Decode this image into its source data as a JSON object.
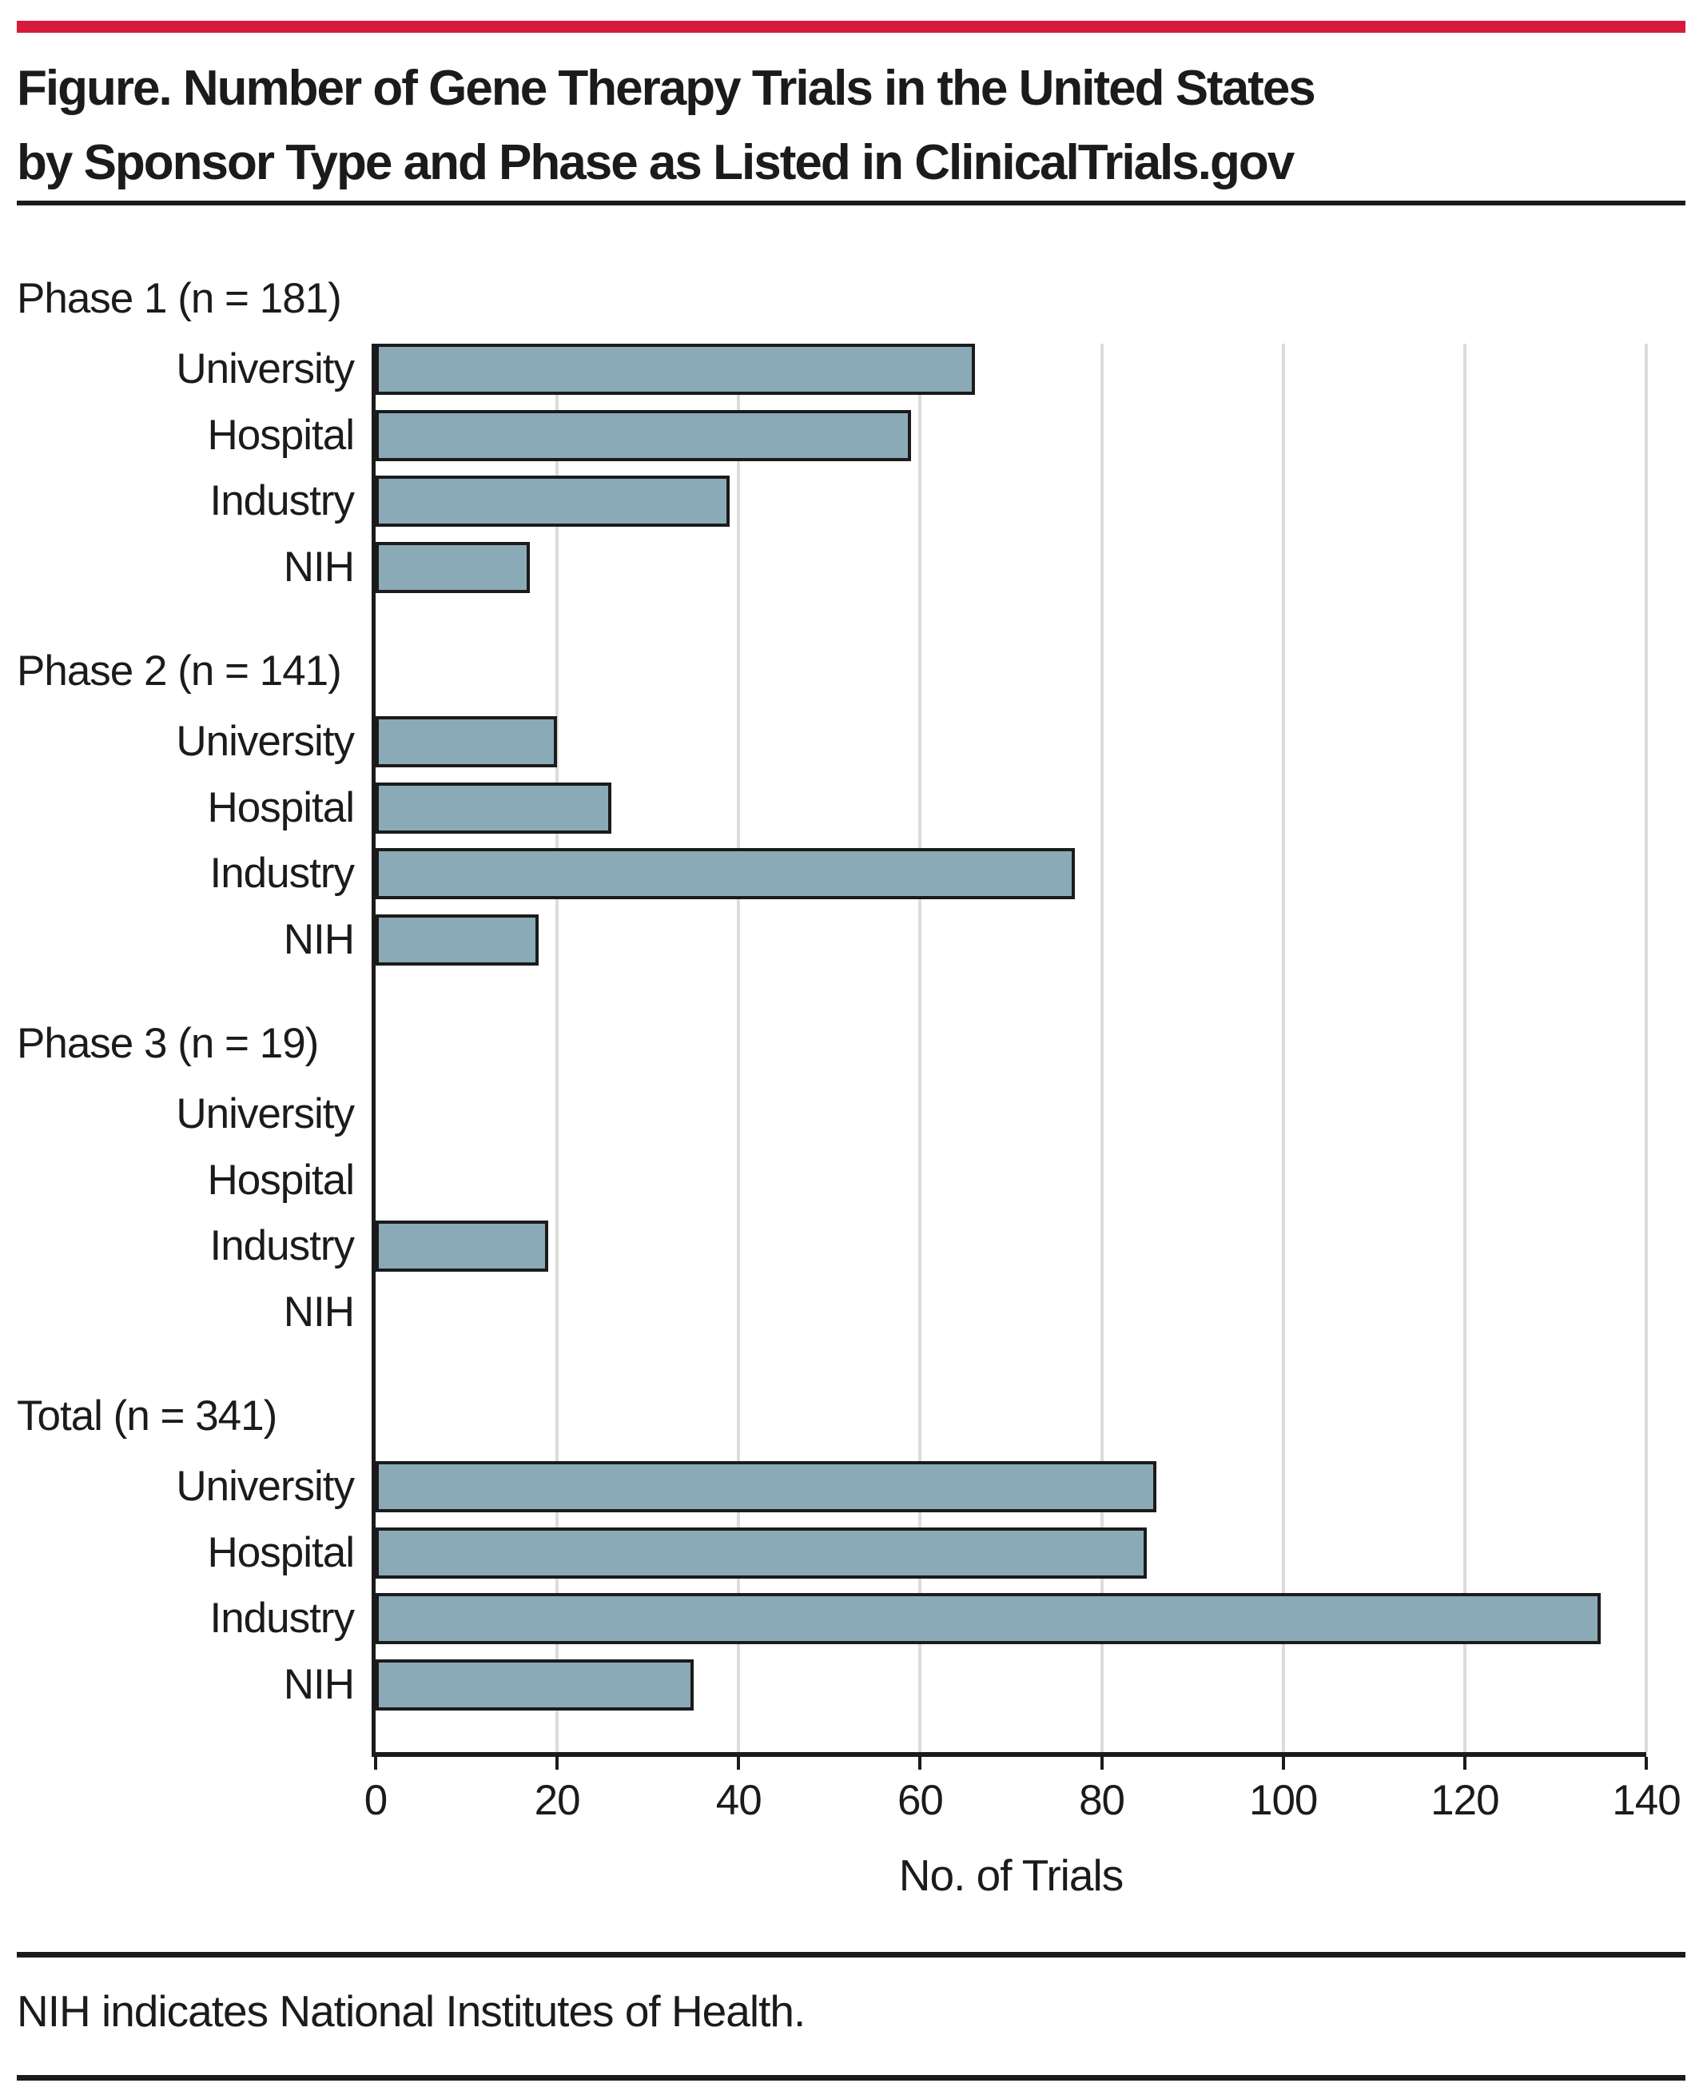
{
  "figure": {
    "title_line1": "Figure. Number of Gene Therapy Trials in the United States",
    "title_line2": "by Sponsor Type and Phase as Listed in ClinicalTrials.gov",
    "footnote": "NIH indicates National Institutes of Health.",
    "accent_color": "#d71b3c",
    "bar_fill_color": "#8baab8",
    "bar_border_color": "#1b1b1b",
    "gridline_color": "#dcdcdc"
  },
  "chart_data": {
    "type": "bar",
    "orientation": "horizontal",
    "title": "Number of Gene Therapy Trials in the United States by Sponsor Type and Phase as Listed in ClinicalTrials.gov",
    "xlabel": "No. of Trials",
    "ylabel": "",
    "xlim": [
      0,
      140
    ],
    "x_ticks": [
      0,
      20,
      40,
      60,
      80,
      100,
      120,
      140
    ],
    "grid": true,
    "categories": [
      "University",
      "Hospital",
      "Industry",
      "NIH"
    ],
    "groups": [
      {
        "label": "Phase 1 (n = 181)",
        "values": [
          66,
          59,
          39,
          17
        ]
      },
      {
        "label": "Phase 2 (n = 141)",
        "values": [
          20,
          26,
          77,
          18
        ]
      },
      {
        "label": "Phase 3 (n = 19)",
        "values": [
          0,
          0,
          19,
          0
        ]
      },
      {
        "label": "Total (n = 341)",
        "values": [
          86,
          85,
          135,
          35
        ]
      }
    ]
  }
}
